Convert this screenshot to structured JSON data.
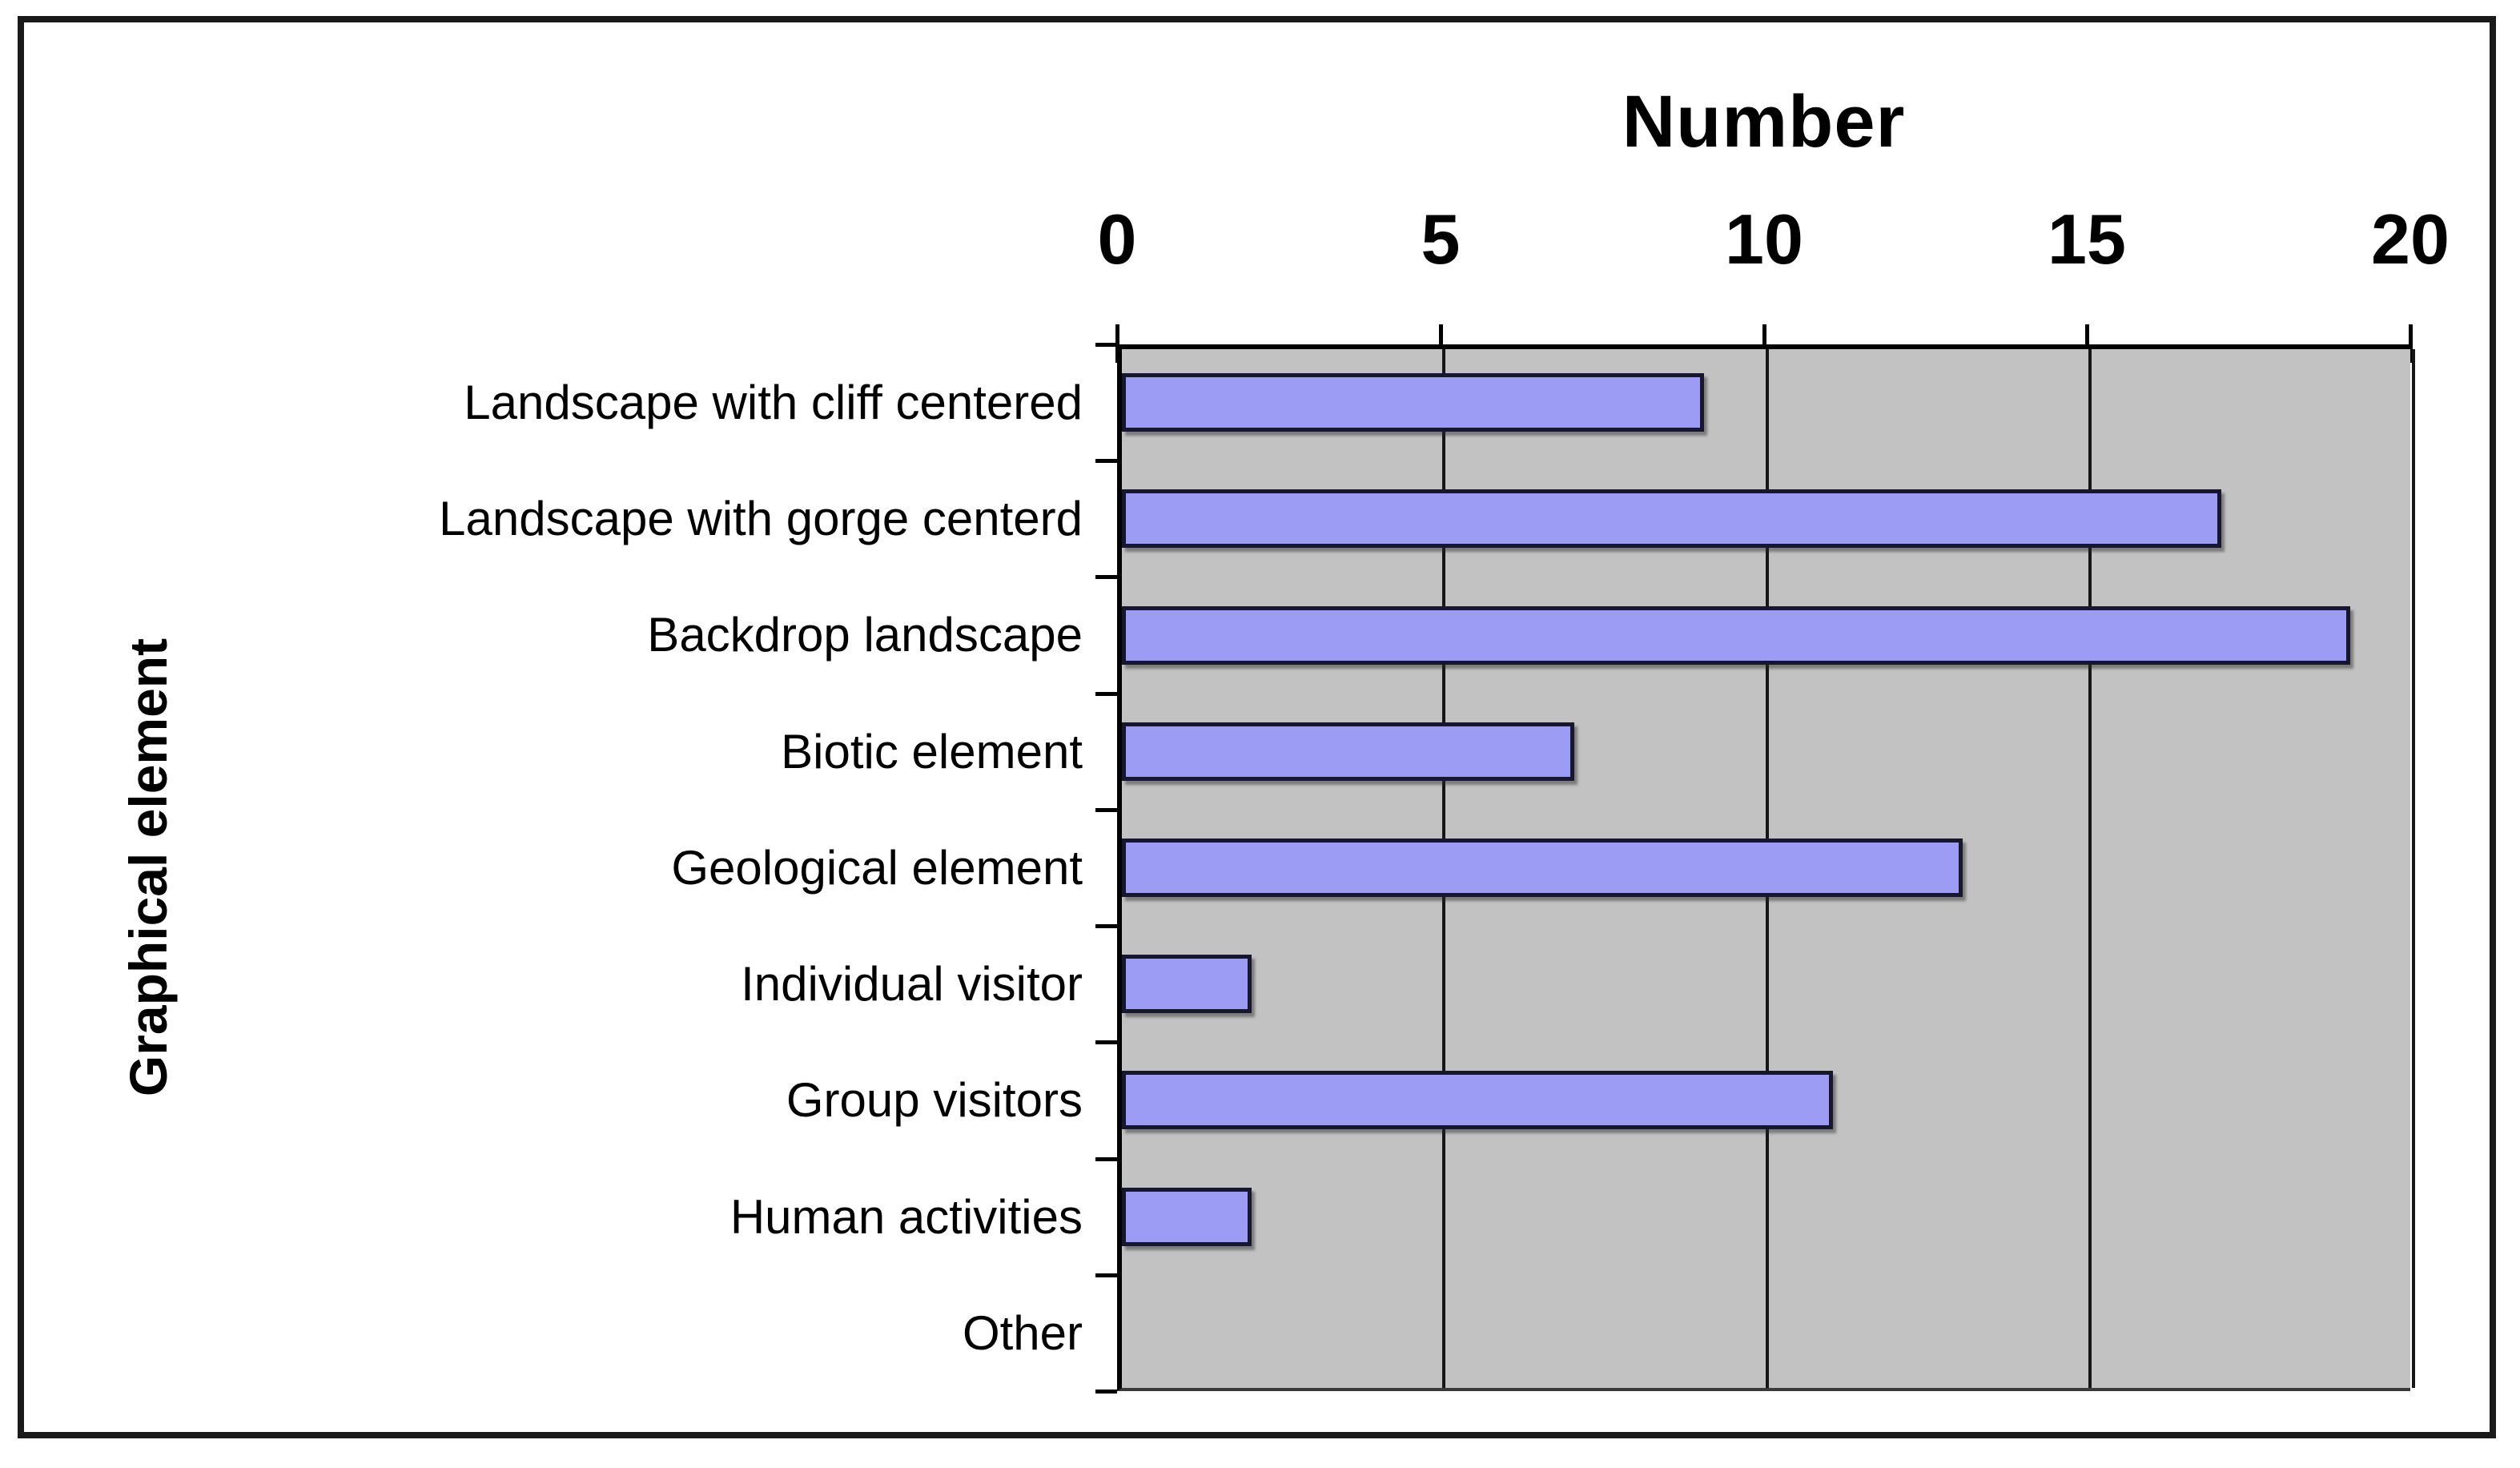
{
  "chart_data": {
    "type": "bar",
    "orientation": "horizontal",
    "title": "Number",
    "value_axis_title": "Number",
    "category_axis_title": "Graphical element",
    "categories": [
      "Landscape with cliff centered",
      "Landscape with gorge centerd",
      "Backdrop landscape",
      "Biotic element",
      "Geological element",
      "Individual visitor",
      "Group visitors",
      "Human activities",
      "Other"
    ],
    "values": [
      9,
      17,
      19,
      7,
      13,
      2,
      11,
      2,
      0
    ],
    "xlabel": "Number",
    "ylabel": "Graphical element",
    "xlim": [
      0,
      20
    ],
    "xticks": [
      0,
      5,
      10,
      15,
      20
    ],
    "xtick_labels": [
      "0",
      "5",
      "10",
      "15",
      "20"
    ],
    "grid": true,
    "legend": "none",
    "colors": {
      "bar_fill": "#9c9cf5",
      "bar_border": "#16162e",
      "plot_background": "#c2c2c2",
      "gridline": "#161616",
      "axis": "#000000",
      "frame_border": "#1a1a1a",
      "text": "#000000",
      "page_background": "#ffffff"
    }
  }
}
